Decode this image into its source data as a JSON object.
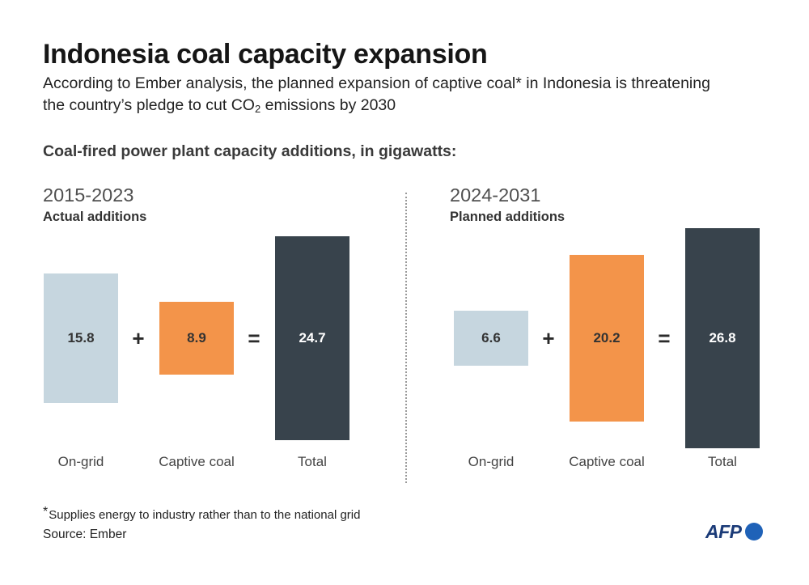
{
  "title": "Indonesia coal capacity expansion",
  "subtitle": {
    "line1": "According to Ember analysis, the planned expansion of captive coal* in Indonesia is threatening",
    "line2_before": "the country’s pledge to cut CO",
    "line2_subscript": "2",
    "line2_after": " emissions by 2030"
  },
  "section_heading": "Coal-fired power plant capacity additions, in gigawatts:",
  "chart_data": [
    {
      "type": "bar",
      "title": "2015-2023",
      "subtitle": "Actual additions",
      "categories": [
        "On-grid",
        "Captive coal",
        "Total"
      ],
      "values": [
        15.8,
        8.9,
        24.7
      ],
      "operators": [
        "+",
        "="
      ],
      "colors": [
        "#c6d6df",
        "#f3944a",
        "#38434c"
      ]
    },
    {
      "type": "bar",
      "title": "2024-2031",
      "subtitle": "Planned additions",
      "categories": [
        "On-grid",
        "Captive coal",
        "Total"
      ],
      "values": [
        6.6,
        20.2,
        26.8
      ],
      "operators": [
        "+",
        "="
      ],
      "colors": [
        "#c6d6df",
        "#f3944a",
        "#38434c"
      ]
    }
  ],
  "footnote": {
    "marker": "*",
    "text": "Supplies energy to industry rather than to the national grid"
  },
  "source": "Source: Ember",
  "logo": {
    "text": "AFP",
    "text_color": "#1b3b78",
    "dot_color": "#1f62b8"
  }
}
